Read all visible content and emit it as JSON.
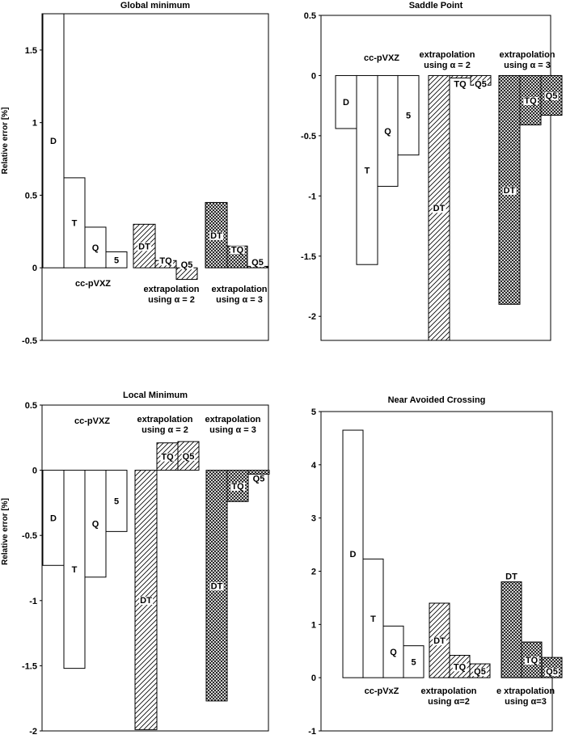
{
  "chart_data": [
    {
      "type": "bar",
      "title": "Global minimum",
      "ylabel": "Relative error [%]",
      "ylim": [
        -0.5,
        1.75
      ],
      "yticks": [
        -0.5,
        0,
        0.5,
        1,
        1.5
      ],
      "ytick_labels": [
        "-0.5",
        "0",
        "0.5",
        "1",
        "1.5"
      ],
      "groups": [
        {
          "label_lines": [
            "cc-pVXZ"
          ],
          "pattern": "plain",
          "bars": [
            {
              "label": "D",
              "value": 1.75
            },
            {
              "label": "T",
              "value": 0.62
            },
            {
              "label": "Q",
              "value": 0.28
            },
            {
              "label": "5",
              "value": 0.11
            }
          ]
        },
        {
          "label_lines": [
            "extrapolation",
            "using α = 2"
          ],
          "pattern": "hatch",
          "bars": [
            {
              "label": "DT",
              "value": 0.3
            },
            {
              "label": "TQ",
              "value": 0.05
            },
            {
              "label": "Q5",
              "value": -0.08
            }
          ]
        },
        {
          "label_lines": [
            "extrapolation",
            "using α = 3"
          ],
          "pattern": "cross",
          "bars": [
            {
              "label": "DT",
              "value": 0.45
            },
            {
              "label": "TQ",
              "value": 0.15
            },
            {
              "label": "Q5",
              "value": 0.01
            }
          ]
        }
      ]
    },
    {
      "type": "bar",
      "title": "Saddle Point",
      "ylabel": "",
      "ylim": [
        -2.2,
        0.5
      ],
      "yticks": [
        -2,
        -1.5,
        -1,
        -0.5,
        0,
        0.5
      ],
      "ytick_labels": [
        "-2",
        "-1.5",
        "-1",
        "-0.5",
        "0",
        "0.5"
      ],
      "groups": [
        {
          "label_lines": [
            "cc-pVXZ"
          ],
          "pattern": "plain",
          "bars": [
            {
              "label": "D",
              "value": -0.44
            },
            {
              "label": "T",
              "value": -1.57
            },
            {
              "label": "Q",
              "value": -0.92
            },
            {
              "label": "5",
              "value": -0.66
            }
          ]
        },
        {
          "label_lines": [
            "extrapolation",
            "using α = 2"
          ],
          "pattern": "hatch",
          "bars": [
            {
              "label": "DT",
              "value": -2.2
            },
            {
              "label": "TQ",
              "value": -0.02
            },
            {
              "label": "Q5",
              "value": -0.08
            }
          ]
        },
        {
          "label_lines": [
            "extrapolation",
            "using α = 3"
          ],
          "pattern": "cross",
          "bars": [
            {
              "label": "DT",
              "value": -1.9
            },
            {
              "label": "TQ",
              "value": -0.41
            },
            {
              "label": "Q5",
              "value": -0.33
            }
          ]
        }
      ]
    },
    {
      "type": "bar",
      "title": "Local Minimum",
      "ylabel": "Relative error [%]",
      "ylim": [
        -2.0,
        0.5
      ],
      "yticks": [
        -2,
        -1.5,
        -1,
        -0.5,
        0,
        0.5
      ],
      "ytick_labels": [
        "-2",
        "-1.5",
        "-1",
        "-0.5",
        "0",
        "0.5"
      ],
      "groups": [
        {
          "label_lines": [
            "cc-pVXZ"
          ],
          "pattern": "plain",
          "bars": [
            {
              "label": "D",
              "value": -0.73
            },
            {
              "label": "T",
              "value": -1.52
            },
            {
              "label": "Q",
              "value": -0.82
            },
            {
              "label": "5",
              "value": -0.47
            }
          ]
        },
        {
          "label_lines": [
            "extrapolation",
            "using α = 2"
          ],
          "pattern": "hatch",
          "bars": [
            {
              "label": "DT",
              "value": -1.99
            },
            {
              "label": "TQ",
              "value": 0.21
            },
            {
              "label": "Q5",
              "value": 0.22
            }
          ]
        },
        {
          "label_lines": [
            "extrapolation",
            "using α = 3"
          ],
          "pattern": "cross",
          "bars": [
            {
              "label": "DT",
              "value": -1.77
            },
            {
              "label": "TQ",
              "value": -0.24
            },
            {
              "label": "Q5",
              "value": -0.03
            }
          ]
        }
      ]
    },
    {
      "type": "bar",
      "title": "Near Avoided Crossing",
      "ylabel": "",
      "ylim": [
        -1,
        5
      ],
      "yticks": [
        -1,
        0,
        1,
        2,
        3,
        4,
        5
      ],
      "ytick_labels": [
        "-1",
        "0",
        "1",
        "2",
        "3",
        "4",
        "5"
      ],
      "groups": [
        {
          "label_lines": [
            "cc-pVxZ"
          ],
          "pattern": "plain",
          "bars": [
            {
              "label": "D",
              "value": 4.65
            },
            {
              "label": "T",
              "value": 2.23
            },
            {
              "label": "Q",
              "value": 0.97
            },
            {
              "label": "5",
              "value": 0.6
            }
          ]
        },
        {
          "label_lines": [
            "extrapolation",
            "using α=2"
          ],
          "pattern": "hatch",
          "bars": [
            {
              "label": "DT",
              "value": 1.4
            },
            {
              "label": "TQ",
              "value": 0.42
            },
            {
              "label": "Q5",
              "value": 0.26
            }
          ]
        },
        {
          "label_lines": [
            "e xtrapolation",
            "using α=3"
          ],
          "pattern": "cross",
          "bars": [
            {
              "label": "DT",
              "value": 1.8
            },
            {
              "label": "TQ",
              "value": 0.67
            },
            {
              "label": "Q5",
              "value": 0.38
            }
          ]
        }
      ]
    }
  ]
}
